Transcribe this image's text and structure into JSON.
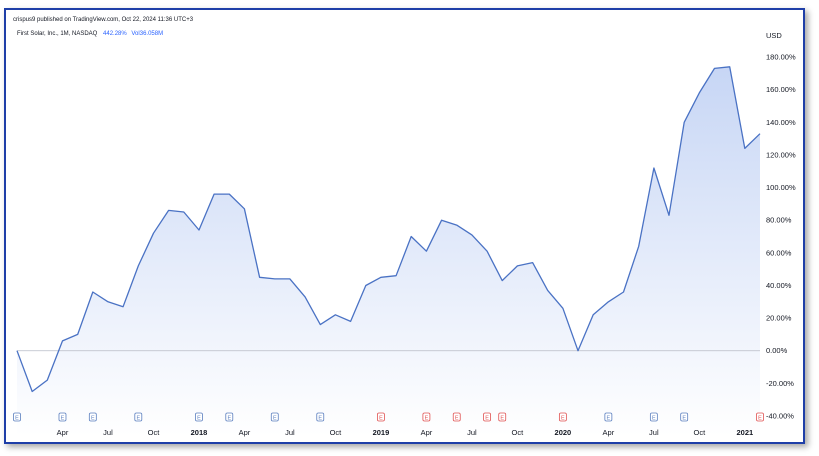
{
  "header": {
    "published": "crispus9 published on TradingView.com, Oct 22, 2024 11:36 UTC+3"
  },
  "legend": {
    "symbol": "First Solar, Inc., 1M, NASDAQ",
    "change": "442.28%",
    "volume": "Vol36.058M"
  },
  "colors": {
    "line": "#4a72c4",
    "fill_top": "#c7d6f5",
    "fill_bottom": "#ffffff",
    "frame": "#1f3fa8",
    "earnings_past": "#5b7fbf",
    "earnings_future": "#e05252"
  },
  "chart_data": {
    "type": "area",
    "title": "",
    "xlabel": "",
    "ylabel": "",
    "currency": "USD",
    "ylim": [
      -40,
      180
    ],
    "y_ticks": [
      "180.00%",
      "160.00%",
      "140.00%",
      "120.00%",
      "100.00%",
      "80.00%",
      "60.00%",
      "40.00%",
      "20.00%",
      "0.00%",
      "-20.00%",
      "-40.00%"
    ],
    "x_tick_labels": [
      {
        "t": 3,
        "label": "Apr"
      },
      {
        "t": 6,
        "label": "Jul"
      },
      {
        "t": 9,
        "label": "Oct"
      },
      {
        "t": 12,
        "label": "2018"
      },
      {
        "t": 15,
        "label": "Apr"
      },
      {
        "t": 18,
        "label": "Jul"
      },
      {
        "t": 21,
        "label": "Oct"
      },
      {
        "t": 24,
        "label": "2019"
      },
      {
        "t": 27,
        "label": "Apr"
      },
      {
        "t": 30,
        "label": "Jul"
      },
      {
        "t": 33,
        "label": "Oct"
      },
      {
        "t": 36,
        "label": "2020"
      },
      {
        "t": 39,
        "label": "Apr"
      },
      {
        "t": 42,
        "label": "Jul"
      },
      {
        "t": 45,
        "label": "Oct"
      },
      {
        "t": 48,
        "label": "2021"
      }
    ],
    "series": [
      {
        "values": [
          0,
          -25,
          -18,
          6,
          10,
          36,
          30,
          27,
          52,
          72,
          86,
          85,
          74,
          96,
          96,
          87,
          45,
          44,
          44,
          33,
          16,
          22,
          18,
          40,
          45,
          46,
          70,
          61,
          80,
          77,
          71,
          61,
          43,
          52,
          54,
          37,
          26,
          0,
          22,
          30,
          36,
          64,
          112,
          83,
          140,
          158,
          173,
          174,
          124,
          133
        ]
      }
    ],
    "earnings_markers": [
      {
        "t": 0,
        "label": "E",
        "status": "past"
      },
      {
        "t": 3,
        "label": "E",
        "status": "past"
      },
      {
        "t": 5,
        "label": "E",
        "status": "past"
      },
      {
        "t": 8,
        "label": "E",
        "status": "past"
      },
      {
        "t": 12,
        "label": "E",
        "status": "past"
      },
      {
        "t": 14,
        "label": "E",
        "status": "past"
      },
      {
        "t": 17,
        "label": "E",
        "status": "past"
      },
      {
        "t": 20,
        "label": "E",
        "status": "past"
      },
      {
        "t": 24,
        "label": "E",
        "status": "future"
      },
      {
        "t": 27,
        "label": "E",
        "status": "future"
      },
      {
        "t": 29,
        "label": "E",
        "status": "future"
      },
      {
        "t": 31,
        "label": "E",
        "status": "future"
      },
      {
        "t": 32,
        "label": "E",
        "status": "future"
      },
      {
        "t": 36,
        "label": "E",
        "status": "future"
      },
      {
        "t": 39,
        "label": "E",
        "status": "past"
      },
      {
        "t": 42,
        "label": "E",
        "status": "past"
      },
      {
        "t": 44,
        "label": "E",
        "status": "past"
      },
      {
        "t": 49,
        "label": "E",
        "status": "future"
      }
    ]
  }
}
